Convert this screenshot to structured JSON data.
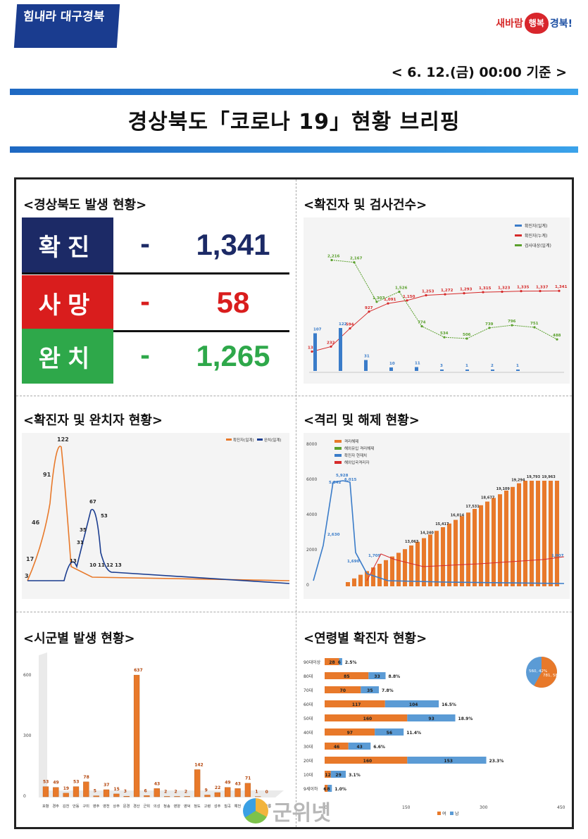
{
  "header": {
    "logo_left_text": "힘내라 대구경북",
    "logo_right": {
      "pre": "새바람",
      "heart": "행복",
      "post": "경북!"
    },
    "dateline": "< 6. 12.(금) 00:00 기준 >",
    "title": "경상북도「코로나 19」현황 브리핑"
  },
  "panels": {
    "occurrence": {
      "title": "<경상북도 발생 현황>",
      "rows": [
        {
          "label": "확진",
          "dash": "-",
          "value": "1,341",
          "label_bg": "#1c2a66",
          "value_color": "#1c2a66"
        },
        {
          "label": "사망",
          "dash": "-",
          "value": "58",
          "label_bg": "#d91d1d",
          "value_color": "#d91d1d"
        },
        {
          "label": "완치",
          "dash": "-",
          "value": "1,265",
          "label_bg": "#2ea84a",
          "value_color": "#2ea84a"
        }
      ]
    },
    "tests": {
      "title": "<확진자 및 검사건수>",
      "legend": [
        "확진자(일계)",
        "확진자(누계)",
        "검사대상(일계)"
      ],
      "cumulative_labels": [
        "133",
        "232",
        "594",
        "927",
        "1,091",
        "1,150",
        "1,253",
        "1,272",
        "1,293",
        "1,315",
        "1,323",
        "1,335",
        "1,337",
        "1,341"
      ],
      "test_labels": [
        "2,216",
        "2,167",
        "1,307",
        "1,526",
        "774",
        "534",
        "506",
        "739",
        "796",
        "751",
        "488"
      ],
      "daily_labels": [
        "107",
        "122",
        "31",
        "10",
        "11",
        "3",
        "1",
        "2",
        "1"
      ]
    },
    "confirm_recover": {
      "title": "<확진자 및 완치자 현황>",
      "legend": [
        "확진자(일계)",
        "완치(일계)"
      ],
      "confirm_peaks": [
        "122",
        "91",
        "46",
        "17",
        "3"
      ],
      "recover_peaks": [
        "67",
        "53",
        "35",
        "31",
        "13",
        "10",
        "11",
        "12",
        "13"
      ]
    },
    "isolation": {
      "title": "<격리 및 해제 현황>",
      "legend": [
        "격리해제",
        "해외유입 격리해제",
        "확진자 현재치",
        "해외입국격리자"
      ],
      "yaxis": [
        "8000",
        "6000",
        "4000",
        "2000",
        "0"
      ],
      "bar_labels": [
        "13,063",
        "14,240",
        "15,417",
        "16,014",
        "17,531",
        "18,677",
        "19,109",
        "19,294",
        "19,793",
        "19,963"
      ],
      "line_labels": [
        "5,928",
        "6,015",
        "5,842",
        "2,630",
        "1,690",
        "1,709",
        "1,907"
      ]
    },
    "regions": {
      "title": "<시군별 발생 현황>",
      "yaxis": [
        "600",
        "300",
        "0"
      ],
      "bars": [
        {
          "name": "포항",
          "value": 53
        },
        {
          "name": "경주",
          "value": 49
        },
        {
          "name": "김천",
          "value": 19
        },
        {
          "name": "안동",
          "value": 53
        },
        {
          "name": "구미",
          "value": 78
        },
        {
          "name": "영주",
          "value": 5
        },
        {
          "name": "영천",
          "value": 37
        },
        {
          "name": "상주",
          "value": 15
        },
        {
          "name": "문경",
          "value": 3
        },
        {
          "name": "경산",
          "value": 637
        },
        {
          "name": "군위",
          "value": 6
        },
        {
          "name": "의성",
          "value": 43
        },
        {
          "name": "청송",
          "value": 2
        },
        {
          "name": "영양",
          "value": 2
        },
        {
          "name": "영덕",
          "value": 2
        },
        {
          "name": "청도",
          "value": 142
        },
        {
          "name": "고령",
          "value": 9
        },
        {
          "name": "성주",
          "value": 22
        },
        {
          "name": "칠곡",
          "value": 49
        },
        {
          "name": "예천",
          "value": 43
        },
        {
          "name": "봉화",
          "value": 71
        },
        {
          "name": "울진",
          "value": 1
        },
        {
          "name": "울릉",
          "value": 0
        }
      ]
    },
    "ages": {
      "title": "<연령별 확진자 현황>",
      "xaxis": [
        "0",
        "150",
        "300",
        "450"
      ],
      "legend": [
        "여",
        "남"
      ],
      "pie": {
        "male": "560, 42%",
        "female": "781, 58%"
      },
      "rows": [
        {
          "age": "90대이상",
          "female": 28,
          "male": 6,
          "pct": "2.5%"
        },
        {
          "age": "80대",
          "female": 85,
          "male": 33,
          "pct": "8.8%"
        },
        {
          "age": "70대",
          "female": 70,
          "male": 35,
          "pct": "7.8%"
        },
        {
          "age": "60대",
          "female": 117,
          "male": 104,
          "pct": "16.5%"
        },
        {
          "age": "50대",
          "female": 160,
          "male": 93,
          "pct": "18.9%"
        },
        {
          "age": "40대",
          "female": 97,
          "male": 56,
          "pct": "11.4%"
        },
        {
          "age": "30대",
          "female": 46,
          "male": 43,
          "pct": "6.6%"
        },
        {
          "age": "20대",
          "female": 160,
          "male": 153,
          "pct": "23.3%"
        },
        {
          "age": "10대",
          "female": 12,
          "male": 29,
          "pct": "3.1%"
        },
        {
          "age": "9세이하",
          "female": 6,
          "male": 8,
          "pct": "1.0%"
        }
      ]
    }
  },
  "watermark": "군위넷",
  "colors": {
    "orange": "#e8792a",
    "blue": "#3a7cc9",
    "navy": "#1a3c8f",
    "green": "#5aa02c",
    "red": "#d62a2a"
  }
}
